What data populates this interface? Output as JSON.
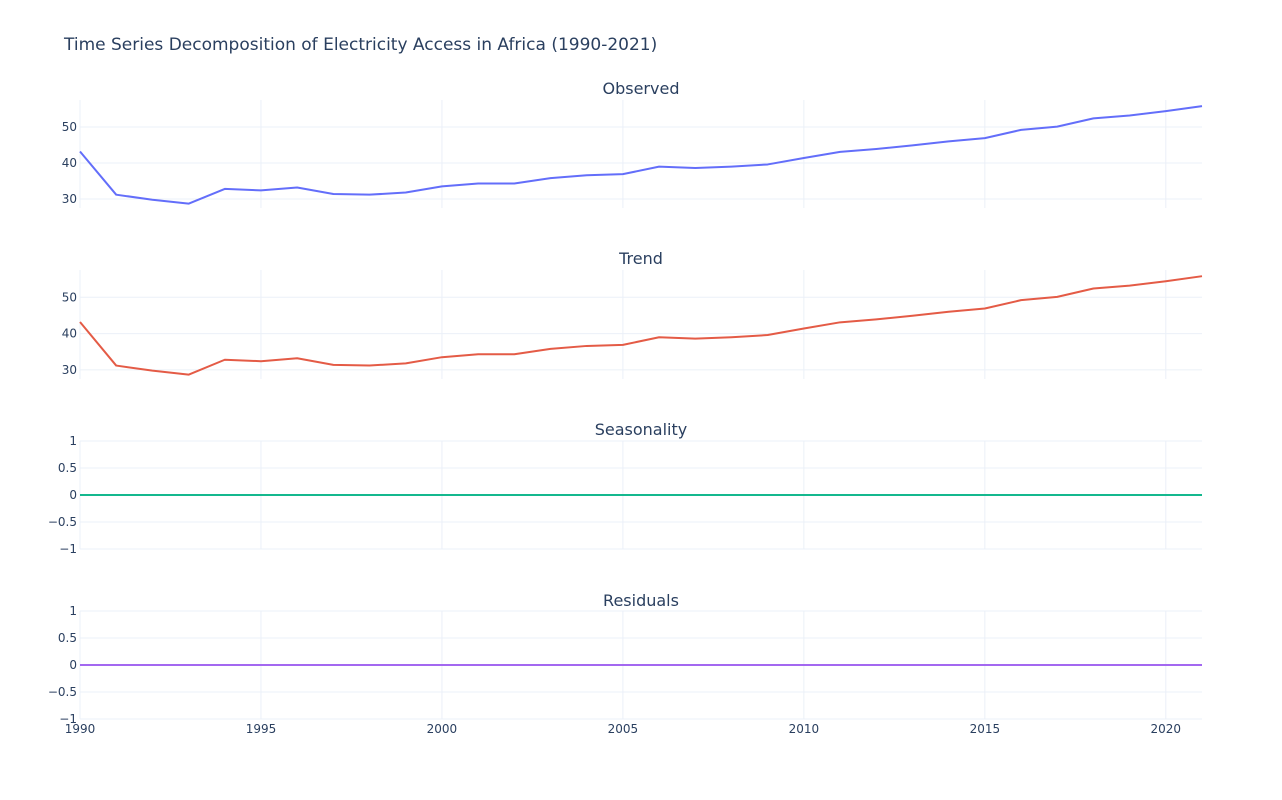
{
  "chart_data": {
    "type": "line",
    "title": "Time Series Decomposition of Electricity Access in Africa (1990-2021)",
    "x": [
      1990,
      1991,
      1992,
      1993,
      1994,
      1995,
      1996,
      1997,
      1998,
      1999,
      2000,
      2001,
      2002,
      2003,
      2004,
      2005,
      2006,
      2007,
      2008,
      2009,
      2010,
      2011,
      2012,
      2013,
      2014,
      2015,
      2016,
      2017,
      2018,
      2019,
      2020,
      2021
    ],
    "xlim": [
      1990,
      2021
    ],
    "xticks": [
      1990,
      1995,
      2000,
      2005,
      2010,
      2015,
      2020
    ],
    "xtick_labels": [
      "1990",
      "1995",
      "2000",
      "2005",
      "2010",
      "2015",
      "2020"
    ],
    "grid": true,
    "panels": [
      {
        "title": "Observed",
        "color": "#636efa",
        "ylim": [
          27.5,
          57.5
        ],
        "yticks": [
          30,
          40,
          50
        ],
        "ytick_labels": [
          "30",
          "40",
          "50"
        ],
        "values": [
          43.2,
          31.2,
          29.8,
          28.7,
          32.8,
          32.4,
          33.2,
          31.4,
          31.2,
          31.8,
          33.5,
          34.3,
          34.3,
          35.8,
          36.6,
          36.9,
          39.0,
          38.6,
          39.0,
          39.6,
          41.4,
          43.1,
          43.9,
          44.9,
          46.0,
          46.9,
          49.2,
          50.1,
          52.4,
          53.2,
          54.4,
          55.8
        ]
      },
      {
        "title": "Trend",
        "color": "#e45b46",
        "ylim": [
          27.5,
          57.5
        ],
        "yticks": [
          30,
          40,
          50
        ],
        "ytick_labels": [
          "30",
          "40",
          "50"
        ],
        "values": [
          43.2,
          31.2,
          29.8,
          28.7,
          32.8,
          32.4,
          33.2,
          31.4,
          31.2,
          31.8,
          33.5,
          34.3,
          34.3,
          35.8,
          36.6,
          36.9,
          39.0,
          38.6,
          39.0,
          39.6,
          41.4,
          43.1,
          43.9,
          44.9,
          46.0,
          46.9,
          49.2,
          50.1,
          52.4,
          53.2,
          54.4,
          55.8
        ]
      },
      {
        "title": "Seasonality",
        "color": "#14b88e",
        "ylim": [
          -1,
          1
        ],
        "yticks": [
          -1,
          -0.5,
          0,
          0.5,
          1
        ],
        "ytick_labels": [
          "−1",
          "−0.5",
          "0",
          "0.5",
          "1"
        ],
        "values": [
          0,
          0,
          0,
          0,
          0,
          0,
          0,
          0,
          0,
          0,
          0,
          0,
          0,
          0,
          0,
          0,
          0,
          0,
          0,
          0,
          0,
          0,
          0,
          0,
          0,
          0,
          0,
          0,
          0,
          0,
          0,
          0
        ]
      },
      {
        "title": "Residuals",
        "color": "#a368f0",
        "ylim": [
          -1,
          1
        ],
        "yticks": [
          -1,
          -0.5,
          0,
          0.5,
          1
        ],
        "ytick_labels": [
          "−1",
          "−0.5",
          "0",
          "0.5",
          "1"
        ],
        "values": [
          0,
          0,
          0,
          0,
          0,
          0,
          0,
          0,
          0,
          0,
          0,
          0,
          0,
          0,
          0,
          0,
          0,
          0,
          0,
          0,
          0,
          0,
          0,
          0,
          0,
          0,
          0,
          0,
          0,
          0,
          0,
          0
        ]
      }
    ]
  }
}
